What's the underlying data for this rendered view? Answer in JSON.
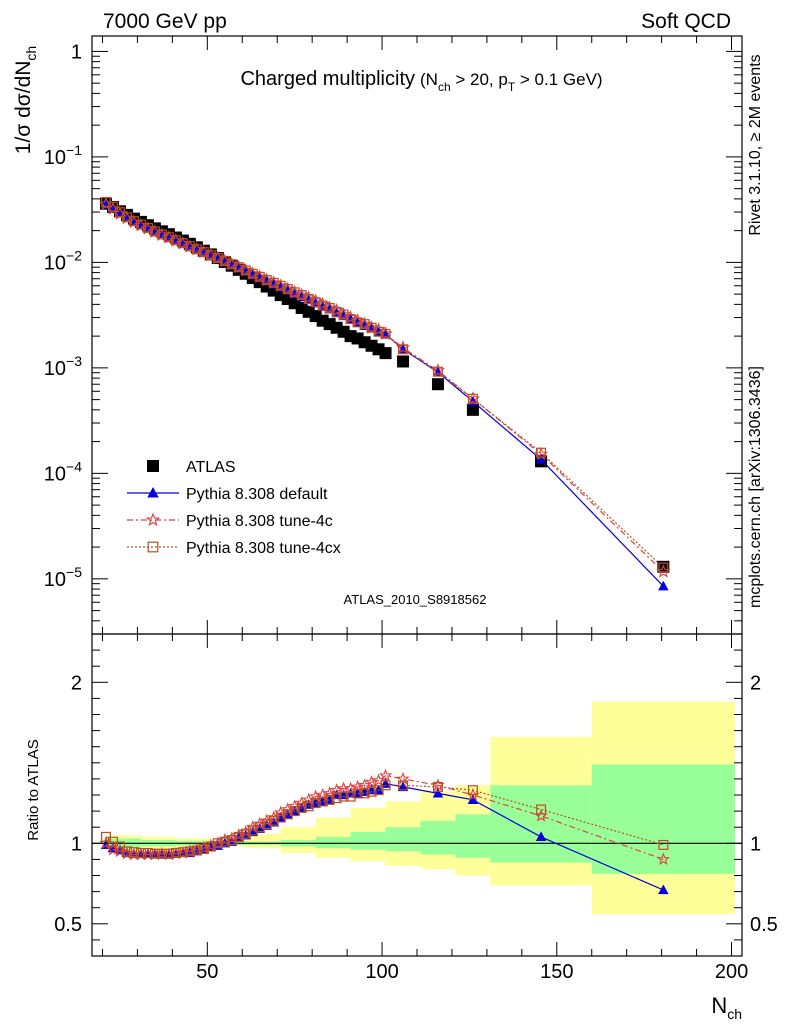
{
  "header": {
    "left": "7000 GeV pp",
    "right": "Soft QCD",
    "side_top": "Rivet 3.1.10, ≥ 2M events",
    "side_bottom": "mcplots.cern.ch [arXiv:1306.3436]",
    "analysis": "ATLAS_2010_S8918562"
  },
  "chart_data": [
    {
      "type": "scatter",
      "panel": "main",
      "title": "Charged multiplicity",
      "title_detail_parts": [
        "(N",
        "ch",
        " > 20, p",
        "T",
        " > 0.1 GeV)"
      ],
      "ylabel_parts": [
        "1/σ dσ/dN",
        "ch"
      ],
      "yscale": "log",
      "ylim": [
        3e-06,
        1.4
      ],
      "xlim": [
        17,
        203
      ],
      "yticks": [
        {
          "value": 1,
          "base": "1",
          "exp": ""
        },
        {
          "value": 0.1,
          "base": "10",
          "exp": "−1"
        },
        {
          "value": 0.01,
          "base": "10",
          "exp": "−2"
        },
        {
          "value": 0.001,
          "base": "10",
          "exp": "−3"
        },
        {
          "value": 0.0001,
          "base": "10",
          "exp": "−4"
        },
        {
          "value": 1e-05,
          "base": "10",
          "exp": "−5"
        }
      ],
      "legend": [
        "ATLAS",
        "Pythia 8.308 default",
        "Pythia 8.308 tune-4c",
        "Pythia 8.308 tune-4cx"
      ],
      "legend_position": "bottom-left",
      "series": [
        {
          "name": "ATLAS",
          "color": "#000000",
          "marker": "square",
          "x": [
            21,
            23,
            25,
            27,
            29,
            31,
            33,
            35,
            37,
            39,
            41,
            43,
            45,
            47,
            49,
            51,
            53,
            55,
            57,
            59,
            61,
            63,
            65,
            67,
            69,
            71,
            73,
            75,
            77,
            79,
            81,
            83,
            85,
            87,
            89,
            91,
            93,
            95,
            97,
            99,
            101,
            106,
            116,
            126,
            145.5,
            180.5
          ],
          "y": [
            0.036,
            0.0335,
            0.0305,
            0.0282,
            0.026,
            0.0242,
            0.0225,
            0.021,
            0.0197,
            0.0185,
            0.0172,
            0.0161,
            0.015,
            0.0139,
            0.0129,
            0.0119,
            0.011,
            0.0101,
            0.0093,
            0.0085,
            0.0078,
            0.0071,
            0.0065,
            0.0059,
            0.0054,
            0.0049,
            0.0045,
            0.0041,
            0.0037,
            0.0034,
            0.0031,
            0.0028,
            0.0026,
            0.0024,
            0.0022,
            0.002,
            0.0019,
            0.00175,
            0.00162,
            0.0015,
            0.00138,
            0.00115,
            0.0007,
            0.0004,
            0.00013,
            1.3e-05
          ]
        },
        {
          "name": "Pythia 8.308 default",
          "color": "#0000dd",
          "marker": "triangle",
          "x": [
            21,
            23,
            25,
            27,
            29,
            31,
            33,
            35,
            37,
            39,
            41,
            43,
            45,
            47,
            49,
            51,
            53,
            55,
            57,
            59,
            61,
            63,
            65,
            67,
            69,
            71,
            73,
            75,
            77,
            79,
            81,
            83,
            85,
            87,
            89,
            91,
            93,
            95,
            97,
            99,
            101,
            106,
            116,
            126,
            145.5,
            180.5
          ],
          "y": [
            0.0355,
            0.0325,
            0.0292,
            0.0265,
            0.0243,
            0.0226,
            0.021,
            0.0196,
            0.0183,
            0.0172,
            0.0161,
            0.0151,
            0.0141,
            0.0132,
            0.0124,
            0.0116,
            0.0108,
            0.0101,
            0.0094,
            0.0088,
            0.0082,
            0.0076,
            0.0071,
            0.0066,
            0.0062,
            0.0058,
            0.0054,
            0.005,
            0.0047,
            0.0044,
            0.0041,
            0.0038,
            0.0036,
            0.0033,
            0.0031,
            0.0029,
            0.0027,
            0.0025,
            0.0024,
            0.0022,
            0.0021,
            0.0015,
            0.00091,
            0.00048,
            0.000135,
            8.5e-06
          ]
        },
        {
          "name": "Pythia 8.308 tune-4c",
          "color": "#e04040",
          "marker": "star",
          "x": [
            21,
            23,
            25,
            27,
            29,
            31,
            33,
            35,
            37,
            39,
            41,
            43,
            45,
            47,
            49,
            51,
            53,
            55,
            57,
            59,
            61,
            63,
            65,
            67,
            69,
            71,
            73,
            75,
            77,
            79,
            81,
            83,
            85,
            87,
            89,
            91,
            93,
            95,
            97,
            99,
            101,
            106,
            116,
            126,
            145.5,
            180.5
          ],
          "y": [
            0.0358,
            0.0322,
            0.0289,
            0.0263,
            0.0241,
            0.0224,
            0.0209,
            0.0195,
            0.0182,
            0.0172,
            0.0161,
            0.0151,
            0.0141,
            0.0133,
            0.0125,
            0.0117,
            0.011,
            0.0103,
            0.0096,
            0.009,
            0.0084,
            0.0078,
            0.0073,
            0.0068,
            0.0064,
            0.006,
            0.0056,
            0.0052,
            0.0049,
            0.0046,
            0.0043,
            0.004,
            0.0037,
            0.0035,
            0.0032,
            0.003,
            0.0028,
            0.0026,
            0.0024,
            0.0023,
            0.0021,
            0.00155,
            0.00094,
            0.00051,
            0.000152,
            1.17e-05
          ]
        },
        {
          "name": "Pythia 8.308 tune-4cx",
          "color": "#b85020",
          "marker": "open-square",
          "x": [
            21,
            23,
            25,
            27,
            29,
            31,
            33,
            35,
            37,
            39,
            41,
            43,
            45,
            47,
            49,
            51,
            53,
            55,
            57,
            59,
            61,
            63,
            65,
            67,
            69,
            71,
            73,
            75,
            77,
            79,
            81,
            83,
            85,
            87,
            89,
            91,
            93,
            95,
            97,
            99,
            101,
            106,
            116,
            126,
            145.5,
            180.5
          ],
          "y": [
            0.0374,
            0.0338,
            0.0299,
            0.0268,
            0.0246,
            0.0228,
            0.0212,
            0.0196,
            0.0184,
            0.0173,
            0.0162,
            0.0152,
            0.0142,
            0.0133,
            0.0125,
            0.0117,
            0.011,
            0.0103,
            0.0096,
            0.009,
            0.0084,
            0.0078,
            0.0073,
            0.0068,
            0.0064,
            0.006,
            0.0056,
            0.0052,
            0.0049,
            0.0045,
            0.0042,
            0.0039,
            0.0037,
            0.0034,
            0.0032,
            0.0029,
            0.0027,
            0.0026,
            0.0024,
            0.0022,
            0.0021,
            0.0015,
            0.00092,
            0.00051,
            0.000157,
            1.28e-05
          ]
        }
      ]
    },
    {
      "type": "scatter",
      "panel": "ratio",
      "ylabel": "Ratio to ATLAS",
      "xlabel_parts": [
        "N",
        "ch"
      ],
      "xlim": [
        17,
        203
      ],
      "ylim": [
        0.3,
        2.3
      ],
      "xticks": [
        50,
        100,
        150,
        200
      ],
      "yticks": [
        0.5,
        1,
        2
      ],
      "band_edges": [
        21,
        31,
        41,
        51,
        61,
        71,
        81,
        91,
        101,
        111,
        121,
        131,
        160,
        201
      ],
      "band_yellow": [
        [
          0.95,
          1.05
        ],
        [
          0.96,
          1.04
        ],
        [
          0.97,
          1.03
        ],
        [
          0.985,
          1.015
        ],
        [
          0.97,
          1.06
        ],
        [
          0.94,
          1.1
        ],
        [
          0.91,
          1.16
        ],
        [
          0.89,
          1.22
        ],
        [
          0.86,
          1.26
        ],
        [
          0.84,
          1.32
        ],
        [
          0.8,
          1.36
        ],
        [
          0.74,
          1.66
        ],
        [
          0.56,
          1.88
        ]
      ],
      "band_green": [
        [
          0.97,
          1.03
        ],
        [
          0.98,
          1.02
        ],
        [
          0.985,
          1.015
        ],
        [
          0.99,
          1.01
        ],
        [
          0.99,
          1.01
        ],
        [
          0.98,
          1.02
        ],
        [
          0.97,
          1.04
        ],
        [
          0.96,
          1.07
        ],
        [
          0.95,
          1.1
        ],
        [
          0.93,
          1.14
        ],
        [
          0.91,
          1.18
        ],
        [
          0.88,
          1.36
        ],
        [
          0.81,
          1.49
        ]
      ],
      "series": [
        {
          "name": "Pythia 8.308 default",
          "color": "#0000dd",
          "marker": "triangle",
          "x": [
            21,
            23,
            25,
            27,
            29,
            31,
            33,
            35,
            37,
            39,
            41,
            43,
            45,
            47,
            49,
            51,
            53,
            55,
            57,
            59,
            61,
            63,
            65,
            67,
            69,
            71,
            73,
            75,
            77,
            79,
            81,
            83,
            85,
            87,
            89,
            91,
            93,
            95,
            97,
            99,
            101,
            106,
            116,
            126,
            145.5,
            180.5
          ],
          "y": [
            0.99,
            0.97,
            0.96,
            0.94,
            0.935,
            0.935,
            0.935,
            0.935,
            0.93,
            0.93,
            0.935,
            0.94,
            0.94,
            0.95,
            0.96,
            0.975,
            0.985,
            1.0,
            1.01,
            1.035,
            1.05,
            1.07,
            1.09,
            1.11,
            1.13,
            1.16,
            1.18,
            1.2,
            1.22,
            1.24,
            1.25,
            1.26,
            1.27,
            1.3,
            1.3,
            1.31,
            1.31,
            1.32,
            1.33,
            1.33,
            1.37,
            1.35,
            1.31,
            1.27,
            1.04,
            0.71
          ]
        },
        {
          "name": "Pythia 8.308 tune-4c",
          "color": "#e04040",
          "marker": "star",
          "x": [
            21,
            23,
            25,
            27,
            29,
            31,
            33,
            35,
            37,
            39,
            41,
            43,
            45,
            47,
            49,
            51,
            53,
            55,
            57,
            59,
            61,
            63,
            65,
            67,
            69,
            71,
            73,
            75,
            77,
            79,
            81,
            83,
            85,
            87,
            89,
            91,
            93,
            95,
            97,
            99,
            101,
            106,
            116,
            126,
            145.5,
            180.5
          ],
          "y": [
            1.0,
            0.96,
            0.95,
            0.935,
            0.93,
            0.93,
            0.93,
            0.93,
            0.935,
            0.93,
            0.935,
            0.94,
            0.95,
            0.96,
            0.97,
            0.985,
            1.0,
            1.02,
            1.03,
            1.05,
            1.07,
            1.1,
            1.12,
            1.14,
            1.16,
            1.19,
            1.21,
            1.23,
            1.25,
            1.27,
            1.29,
            1.3,
            1.31,
            1.33,
            1.34,
            1.34,
            1.35,
            1.36,
            1.38,
            1.39,
            1.42,
            1.4,
            1.36,
            1.3,
            1.17,
            0.9
          ]
        },
        {
          "name": "Pythia 8.308 tune-4cx",
          "color": "#b85020",
          "marker": "open-square",
          "x": [
            21,
            23,
            25,
            27,
            29,
            31,
            33,
            35,
            37,
            39,
            41,
            43,
            45,
            47,
            49,
            51,
            53,
            55,
            57,
            59,
            61,
            63,
            65,
            67,
            69,
            71,
            73,
            75,
            77,
            79,
            81,
            83,
            85,
            87,
            89,
            91,
            93,
            95,
            97,
            99,
            101,
            106,
            116,
            126,
            145.5,
            180.5
          ],
          "y": [
            1.04,
            1.01,
            0.98,
            0.95,
            0.945,
            0.94,
            0.94,
            0.935,
            0.935,
            0.935,
            0.94,
            0.945,
            0.95,
            0.955,
            0.965,
            0.98,
            1.0,
            1.01,
            1.02,
            1.04,
            1.06,
            1.08,
            1.1,
            1.12,
            1.14,
            1.16,
            1.18,
            1.2,
            1.22,
            1.23,
            1.25,
            1.26,
            1.27,
            1.28,
            1.29,
            1.29,
            1.31,
            1.31,
            1.32,
            1.33,
            1.36,
            1.36,
            1.35,
            1.33,
            1.21,
            0.99
          ]
        }
      ]
    }
  ]
}
